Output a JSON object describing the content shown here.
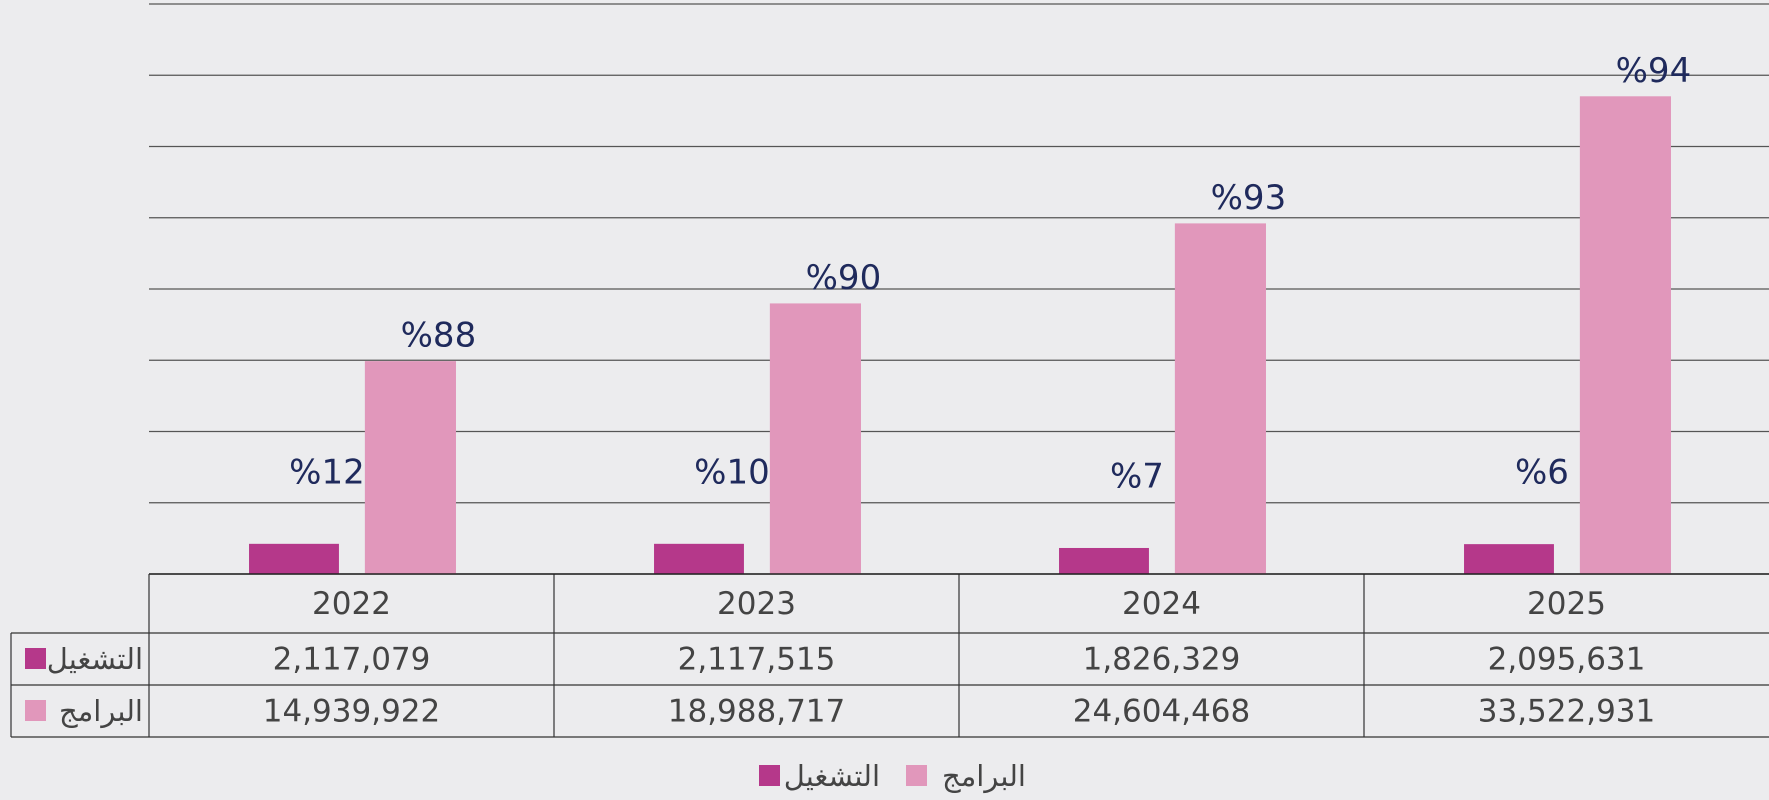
{
  "chart_data": {
    "type": "bar",
    "categories": [
      "2022",
      "2023",
      "2024",
      "2025"
    ],
    "series": [
      {
        "name": "التشغيل",
        "color": "#b5388a",
        "values": [
          2117079,
          2117515,
          1826329,
          2095631
        ],
        "value_labels": [
          "2,117,079",
          "2,117,515",
          "1,826,329",
          "2,095,631"
        ],
        "percent_labels": [
          "%12",
          "%10",
          "%7",
          "%6"
        ]
      },
      {
        "name": "البرامج",
        "color": "#e197bb",
        "values": [
          14939922,
          18988717,
          24604468,
          33522931
        ],
        "value_labels": [
          "14,939,922",
          "18,988,717",
          "24,604,468",
          "33,522,931"
        ],
        "percent_labels": [
          "%88",
          "%90",
          "%93",
          "%94"
        ]
      }
    ],
    "ylim": [
      0,
      40000000
    ],
    "yticks": [
      0,
      5000000,
      10000000,
      15000000,
      20000000,
      25000000,
      30000000,
      35000000,
      40000000
    ],
    "grid": true
  }
}
